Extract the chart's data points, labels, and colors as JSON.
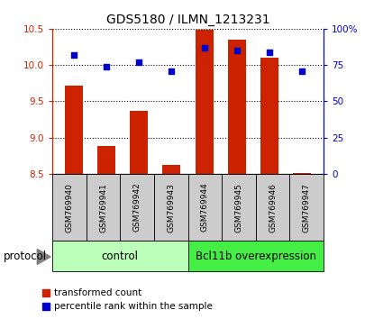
{
  "title": "GDS5180 / ILMN_1213231",
  "samples": [
    "GSM769940",
    "GSM769941",
    "GSM769942",
    "GSM769943",
    "GSM769944",
    "GSM769945",
    "GSM769946",
    "GSM769947"
  ],
  "transformed_counts": [
    9.72,
    8.88,
    9.37,
    8.62,
    10.48,
    10.35,
    10.1,
    8.51
  ],
  "percentile_ranks": [
    82,
    74,
    77,
    71,
    87,
    85,
    84,
    71
  ],
  "ylim_left": [
    8.5,
    10.5
  ],
  "ylim_right": [
    0,
    100
  ],
  "yticks_left": [
    8.5,
    9.0,
    9.5,
    10.0,
    10.5
  ],
  "yticks_right": [
    0,
    25,
    50,
    75,
    100
  ],
  "ytick_labels_right": [
    "0",
    "25",
    "50",
    "75",
    "100%"
  ],
  "bar_color": "#cc2200",
  "dot_color": "#0000cc",
  "control_label": "control",
  "overexpression_label": "Bcl11b overexpression",
  "protocol_label": "protocol",
  "legend_bar_label": "transformed count",
  "legend_dot_label": "percentile rank within the sample",
  "control_color": "#bbffbb",
  "overexpression_color": "#44ee44",
  "bg_color": "#cccccc",
  "bar_width": 0.55
}
